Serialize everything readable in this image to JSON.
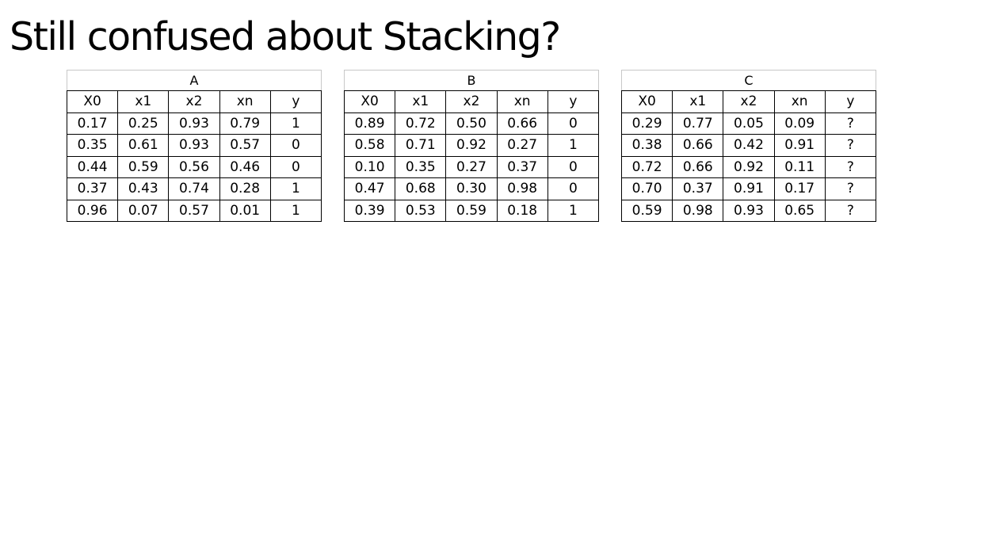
{
  "title": "Still confused about Stacking?",
  "tables": [
    {
      "label": "A",
      "columns": [
        "X0",
        "x1",
        "x2",
        "xn",
        "y"
      ],
      "rows": [
        [
          "0.17",
          "0.25",
          "0.93",
          "0.79",
          "1"
        ],
        [
          "0.35",
          "0.61",
          "0.93",
          "0.57",
          "0"
        ],
        [
          "0.44",
          "0.59",
          "0.56",
          "0.46",
          "0"
        ],
        [
          "0.37",
          "0.43",
          "0.74",
          "0.28",
          "1"
        ],
        [
          "0.96",
          "0.07",
          "0.57",
          "0.01",
          "1"
        ]
      ]
    },
    {
      "label": "B",
      "columns": [
        "X0",
        "x1",
        "x2",
        "xn",
        "y"
      ],
      "rows": [
        [
          "0.89",
          "0.72",
          "0.50",
          "0.66",
          "0"
        ],
        [
          "0.58",
          "0.71",
          "0.92",
          "0.27",
          "1"
        ],
        [
          "0.10",
          "0.35",
          "0.27",
          "0.37",
          "0"
        ],
        [
          "0.47",
          "0.68",
          "0.30",
          "0.98",
          "0"
        ],
        [
          "0.39",
          "0.53",
          "0.59",
          "0.18",
          "1"
        ]
      ]
    },
    {
      "label": "C",
      "columns": [
        "X0",
        "x1",
        "x2",
        "xn",
        "y"
      ],
      "rows": [
        [
          "0.29",
          "0.77",
          "0.05",
          "0.09",
          "?"
        ],
        [
          "0.38",
          "0.66",
          "0.42",
          "0.91",
          "?"
        ],
        [
          "0.72",
          "0.66",
          "0.92",
          "0.11",
          "?"
        ],
        [
          "0.70",
          "0.37",
          "0.91",
          "0.17",
          "?"
        ],
        [
          "0.59",
          "0.98",
          "0.93",
          "0.65",
          "?"
        ]
      ]
    }
  ]
}
